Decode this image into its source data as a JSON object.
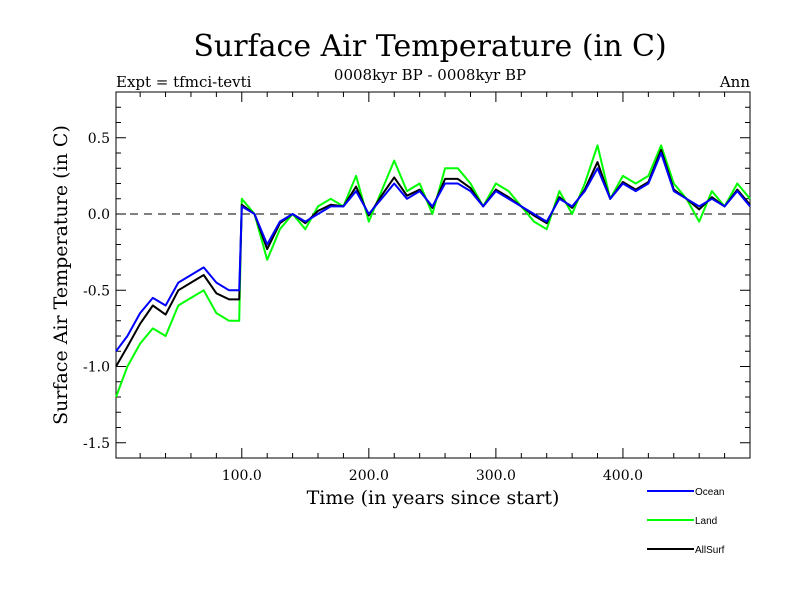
{
  "chart_data": {
    "type": "line",
    "title": "Surface Air Temperature (in C)",
    "subtitle_left": "Expt = tfmci-tevti",
    "subtitle_center": "0008kyr BP - 0008kyr BP",
    "subtitle_right": "Ann",
    "xlabel": "Time (in years since start)",
    "ylabel": "Surface Air Temperature (in C)",
    "xlim": [
      1,
      500
    ],
    "ylim": [
      -1.6,
      0.8
    ],
    "x_ticks": [
      100,
      200,
      300,
      400
    ],
    "x_tick_labels": [
      "100.0",
      "200.0",
      "300.0",
      "400.0"
    ],
    "y_ticks": [
      -1.5,
      -1.0,
      -0.5,
      0.0,
      0.5
    ],
    "y_tick_labels": [
      "-1.5",
      "-1.0",
      "-0.5",
      "0.0",
      "0.5"
    ],
    "reference_line": 0.0,
    "series": [
      {
        "name": "Ocean",
        "color": "#0000ff",
        "x": [
          1,
          10,
          20,
          30,
          40,
          50,
          60,
          70,
          80,
          90,
          98,
          100,
          110,
          120,
          130,
          140,
          150,
          160,
          170,
          180,
          190,
          200,
          210,
          220,
          230,
          240,
          250,
          260,
          270,
          280,
          290,
          300,
          310,
          320,
          330,
          340,
          350,
          360,
          370,
          380,
          390,
          400,
          410,
          420,
          430,
          440,
          450,
          460,
          470,
          480,
          490,
          500
        ],
        "values": [
          -0.9,
          -0.8,
          -0.65,
          -0.55,
          -0.6,
          -0.45,
          -0.4,
          -0.35,
          -0.45,
          -0.5,
          -0.5,
          0.05,
          0.0,
          -0.2,
          -0.05,
          0.0,
          -0.05,
          0.0,
          0.05,
          0.05,
          0.15,
          0.0,
          0.1,
          0.2,
          0.1,
          0.15,
          0.05,
          0.2,
          0.2,
          0.15,
          0.05,
          0.15,
          0.1,
          0.05,
          0.0,
          -0.05,
          0.1,
          0.05,
          0.15,
          0.3,
          0.1,
          0.2,
          0.15,
          0.2,
          0.4,
          0.15,
          0.1,
          0.05,
          0.1,
          0.05,
          0.15,
          0.05
        ]
      },
      {
        "name": "Land",
        "color": "#00ff00",
        "x": [
          1,
          10,
          20,
          30,
          40,
          50,
          60,
          70,
          80,
          90,
          98,
          100,
          110,
          120,
          130,
          140,
          150,
          160,
          170,
          180,
          190,
          200,
          210,
          220,
          230,
          240,
          250,
          260,
          270,
          280,
          290,
          300,
          310,
          320,
          330,
          340,
          350,
          360,
          370,
          380,
          390,
          400,
          410,
          420,
          430,
          440,
          450,
          460,
          470,
          480,
          490,
          500
        ],
        "values": [
          -1.2,
          -1.0,
          -0.85,
          -0.75,
          -0.8,
          -0.6,
          -0.55,
          -0.5,
          -0.65,
          -0.7,
          -0.7,
          0.1,
          0.0,
          -0.3,
          -0.1,
          0.0,
          -0.1,
          0.05,
          0.1,
          0.05,
          0.25,
          -0.05,
          0.15,
          0.35,
          0.15,
          0.2,
          0.0,
          0.3,
          0.3,
          0.2,
          0.05,
          0.2,
          0.15,
          0.05,
          -0.05,
          -0.1,
          0.15,
          0.0,
          0.2,
          0.45,
          0.1,
          0.25,
          0.2,
          0.25,
          0.45,
          0.2,
          0.1,
          -0.05,
          0.15,
          0.05,
          0.2,
          0.1
        ]
      },
      {
        "name": "AllSurf",
        "color": "#000000",
        "x": [
          1,
          10,
          20,
          30,
          40,
          50,
          60,
          70,
          80,
          90,
          98,
          100,
          110,
          120,
          130,
          140,
          150,
          160,
          170,
          180,
          190,
          200,
          210,
          220,
          230,
          240,
          250,
          260,
          270,
          280,
          290,
          300,
          310,
          320,
          330,
          340,
          350,
          360,
          370,
          380,
          390,
          400,
          410,
          420,
          430,
          440,
          450,
          460,
          470,
          480,
          490,
          500
        ],
        "values": [
          -1.0,
          -0.87,
          -0.72,
          -0.6,
          -0.66,
          -0.5,
          -0.45,
          -0.4,
          -0.52,
          -0.56,
          -0.56,
          0.06,
          0.0,
          -0.23,
          -0.06,
          0.0,
          -0.06,
          0.02,
          0.06,
          0.05,
          0.18,
          -0.01,
          0.12,
          0.24,
          0.12,
          0.16,
          0.04,
          0.23,
          0.23,
          0.17,
          0.05,
          0.16,
          0.11,
          0.05,
          -0.01,
          -0.06,
          0.11,
          0.04,
          0.16,
          0.34,
          0.1,
          0.21,
          0.16,
          0.21,
          0.42,
          0.16,
          0.1,
          0.03,
          0.11,
          0.05,
          0.16,
          0.06
        ]
      }
    ],
    "legend_position": "bottom-right"
  }
}
